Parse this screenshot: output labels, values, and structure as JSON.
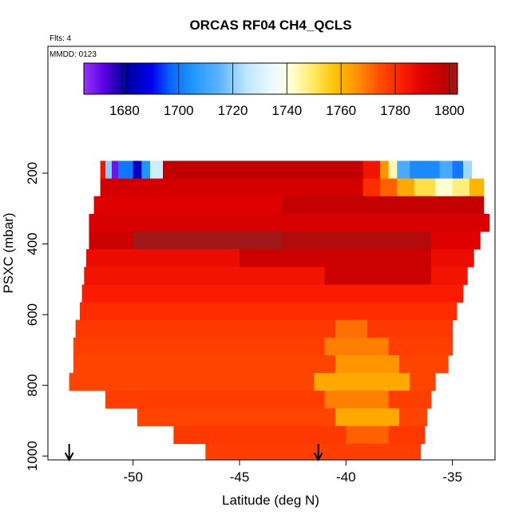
{
  "chart_data": {
    "type": "heatmap",
    "title": "ORCAS RF04 CH4_QCLS",
    "annotations": [
      "Flts: 4",
      "MMDD: 0123"
    ],
    "xlabel": "Latitude (deg N)",
    "ylabel": "PSXC (mbar)",
    "xlim": [
      -54,
      -33
    ],
    "xticks": [
      -50,
      -45,
      -40,
      -35
    ],
    "ylim": [
      1011,
      -159
    ],
    "yticks": [
      200,
      400,
      600,
      800,
      1000
    ],
    "colorbar": {
      "lim": [
        1665,
        1803
      ],
      "ticks": [
        1680,
        1700,
        1720,
        1740,
        1760,
        1780,
        1800
      ],
      "stops": [
        {
          "value": 1665,
          "color": "#9932ff"
        },
        {
          "value": 1673,
          "color": "#5500dd"
        },
        {
          "value": 1680,
          "color": "#000099"
        },
        {
          "value": 1690,
          "color": "#0000ee"
        },
        {
          "value": 1697,
          "color": "#0a64ff"
        },
        {
          "value": 1705,
          "color": "#1e96ff"
        },
        {
          "value": 1715,
          "color": "#5ab4ff"
        },
        {
          "value": 1725,
          "color": "#bde6ff"
        },
        {
          "value": 1735,
          "color": "#eefaff"
        },
        {
          "value": 1742,
          "color": "#ffffd0"
        },
        {
          "value": 1750,
          "color": "#ffe860"
        },
        {
          "value": 1758,
          "color": "#ffc000"
        },
        {
          "value": 1766,
          "color": "#ff9000"
        },
        {
          "value": 1774,
          "color": "#ff5000"
        },
        {
          "value": 1782,
          "color": "#ff2000"
        },
        {
          "value": 1790,
          "color": "#e00000"
        },
        {
          "value": 1798,
          "color": "#c00000"
        },
        {
          "value": 1803,
          "color": "#a01818"
        }
      ]
    },
    "rows": [
      {
        "p": [
          165,
          215
        ],
        "edges": [
          -51.54,
          -51.3,
          -51.0,
          -50.7,
          -50.0,
          -49.6,
          -49.2,
          -48.6,
          -39.2,
          -38.4,
          -38.0,
          -37.6,
          -37.0,
          -35.6,
          -35.0,
          -34.5,
          -34.1
        ],
        "values": [
          1785,
          1720,
          1670,
          1700,
          1685,
          1705,
          1728,
          1798,
          1785,
          1765,
          1745,
          1712,
          1703,
          1712,
          1700,
          1722
        ]
      },
      {
        "p": [
          215,
          265
        ],
        "edges": [
          -51.54,
          -39.2,
          -38.4,
          -37.6,
          -36.8,
          -35.8,
          -35.0,
          -34.2,
          -33.53
        ],
        "values": [
          1793,
          1780,
          1772,
          1762,
          1752,
          1742,
          1748,
          1760
        ]
      },
      {
        "p": [
          265,
          315
        ],
        "edges": [
          -51.84,
          -43,
          -33.53
        ],
        "values": [
          1790,
          1797
        ]
      },
      {
        "p": [
          315,
          365
        ],
        "edges": [
          -52.07,
          -33.27
        ],
        "values": [
          1792
        ]
      },
      {
        "p": [
          365,
          415
        ],
        "edges": [
          -52.07,
          -50,
          -43,
          -36,
          -33.7
        ],
        "values": [
          1795,
          1803,
          1800,
          1790
        ]
      },
      {
        "p": [
          415,
          465
        ],
        "edges": [
          -52.2,
          -45,
          -36,
          -34.0
        ],
        "values": [
          1787,
          1795,
          1787
        ]
      },
      {
        "p": [
          465,
          515
        ],
        "edges": [
          -52.3,
          -41,
          -36,
          -34.3
        ],
        "values": [
          1785,
          1795,
          1785
        ]
      },
      {
        "p": [
          515,
          565
        ],
        "edges": [
          -52.4,
          -34.5
        ],
        "values": [
          1783
        ]
      },
      {
        "p": [
          565,
          615
        ],
        "edges": [
          -52.5,
          -34.8
        ],
        "values": [
          1780
        ]
      },
      {
        "p": [
          615,
          665
        ],
        "edges": [
          -52.7,
          -40.5,
          -39.0,
          -35.0
        ],
        "values": [
          1778,
          1770,
          1778
        ]
      },
      {
        "p": [
          665,
          715
        ],
        "edges": [
          -52.8,
          -41,
          -38,
          -35.0
        ],
        "values": [
          1777,
          1768,
          1777
        ]
      },
      {
        "p": [
          715,
          765
        ],
        "edges": [
          -52.8,
          -40.5,
          -37.5,
          -35.2
        ],
        "values": [
          1776,
          1765,
          1776
        ]
      },
      {
        "p": [
          765,
          815
        ],
        "edges": [
          -53.0,
          -41.5,
          -37,
          -35.8
        ],
        "values": [
          1776,
          1762,
          1776
        ]
      },
      {
        "p": [
          815,
          865
        ],
        "edges": [
          -51.3,
          -41,
          -38,
          -36.0
        ],
        "values": [
          1777,
          1768,
          1777
        ]
      },
      {
        "p": [
          865,
          915
        ],
        "edges": [
          -49.8,
          -40.5,
          -37.5,
          -36.2
        ],
        "values": [
          1776,
          1762,
          1776
        ]
      },
      {
        "p": [
          915,
          965
        ],
        "edges": [
          -48.1,
          -40,
          -38,
          -36.3
        ],
        "values": [
          1778,
          1772,
          1778
        ]
      },
      {
        "p": [
          965,
          1010
        ],
        "edges": [
          -46.6,
          -36.5
        ],
        "values": [
          1777
        ]
      }
    ],
    "arrows": [
      -53.0,
      -41.3
    ]
  }
}
